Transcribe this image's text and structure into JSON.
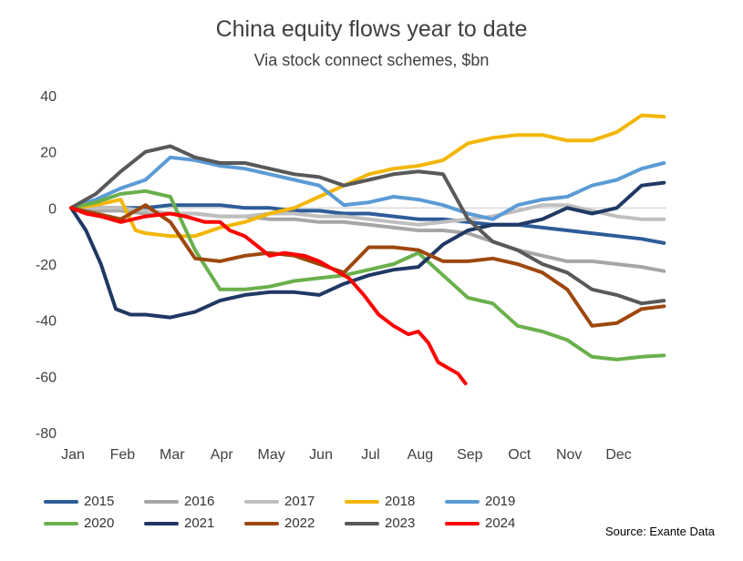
{
  "chart_data": {
    "type": "line",
    "title": "China equity flows year to date",
    "subtitle": "Via stock connect schemes, $bn",
    "source": "Source: Exante Data",
    "ylim": [
      -80,
      40
    ],
    "yticks": [
      40,
      20,
      0,
      -20,
      -40,
      -60,
      -80
    ],
    "xlim": [
      0,
      12
    ],
    "x_tick_labels": [
      "Jan",
      "Feb",
      "Mar",
      "Apr",
      "May",
      "Jun",
      "Jul",
      "Aug",
      "Sep",
      "Oct",
      "Nov",
      "Dec"
    ],
    "grid": false,
    "legend_position": "bottom",
    "series": [
      {
        "name": "2015",
        "color": "#2e5c99",
        "x": [
          0,
          0.5,
          1,
          1.5,
          2,
          2.5,
          3,
          3.5,
          4,
          4.5,
          5,
          5.5,
          6,
          6.5,
          7,
          7.5,
          8,
          8.5,
          9,
          9.5,
          10,
          10.5,
          11,
          11.5,
          11.95
        ],
        "y": [
          0,
          0,
          0,
          0,
          1,
          1,
          1,
          0,
          0,
          -1,
          -1,
          -2,
          -2,
          -3,
          -4,
          -4,
          -5,
          -6,
          -6,
          -7,
          -8,
          -9,
          -10,
          -11,
          -12.5
        ]
      },
      {
        "name": "2016",
        "color": "#a6a6a6",
        "x": [
          0,
          0.5,
          1,
          1.5,
          2,
          2.5,
          3,
          3.5,
          4,
          4.5,
          5,
          5.5,
          6,
          6.5,
          7,
          7.5,
          8,
          8.5,
          9,
          9.5,
          10,
          10.5,
          11,
          11.5,
          11.95
        ],
        "y": [
          0,
          -1,
          -1,
          -2,
          -2,
          -2,
          -3,
          -3,
          -4,
          -4,
          -5,
          -5,
          -6,
          -7,
          -8,
          -8,
          -9,
          -12,
          -15,
          -17,
          -19,
          -19,
          -20,
          -21,
          -22.5
        ]
      },
      {
        "name": "2017",
        "color": "#bfbfbf",
        "x": [
          0,
          0.5,
          1,
          1.5,
          2,
          2.5,
          3,
          3.5,
          4,
          4.5,
          5,
          5.5,
          6,
          6.5,
          7,
          7.5,
          8,
          8.5,
          9,
          9.5,
          10,
          10.5,
          11,
          11.5,
          11.95
        ],
        "y": [
          0,
          0,
          0,
          -1,
          -2,
          -2,
          -3,
          -3,
          -2,
          -2,
          -3,
          -3,
          -4,
          -5,
          -6,
          -5,
          -4,
          -3,
          -1,
          1,
          1,
          -1,
          -3,
          -4,
          -4
        ]
      },
      {
        "name": "2018",
        "color": "#f2b705",
        "x": [
          0,
          0.5,
          1,
          1.3,
          1.5,
          2,
          2.5,
          3,
          3.5,
          4,
          4.5,
          5,
          5.5,
          6,
          6.5,
          7,
          7.5,
          8,
          8.5,
          9,
          9.5,
          10,
          10.5,
          11,
          11.5,
          11.95
        ],
        "y": [
          0,
          1,
          3,
          -8,
          -9,
          -10,
          -10,
          -7,
          -5,
          -2,
          0,
          4,
          8,
          12,
          14,
          15,
          17,
          23,
          25,
          26,
          26,
          24,
          24,
          27,
          33,
          32.5
        ]
      },
      {
        "name": "2019",
        "color": "#5b9bd5",
        "x": [
          0,
          0.5,
          1,
          1.5,
          2,
          2.5,
          3,
          3.5,
          4,
          4.5,
          5,
          5.5,
          6,
          6.5,
          7,
          7.5,
          8,
          8.5,
          9,
          9.5,
          10,
          10.5,
          11,
          11.5,
          11.95
        ],
        "y": [
          0,
          3,
          7,
          10,
          18,
          17,
          15,
          14,
          12,
          10,
          8,
          1,
          2,
          4,
          3,
          1,
          -2,
          -4,
          1,
          3,
          4,
          8,
          10,
          14,
          16
        ]
      },
      {
        "name": "2020",
        "color": "#6ab04c",
        "x": [
          0,
          0.5,
          1,
          1.5,
          2,
          2.5,
          3,
          3.5,
          4,
          4.5,
          5,
          5.5,
          6,
          6.5,
          7,
          7.5,
          8,
          8.5,
          9,
          9.5,
          10,
          10.5,
          11,
          11.5,
          11.95
        ],
        "y": [
          0,
          2,
          5,
          6,
          4,
          -15,
          -29,
          -29,
          -28,
          -26,
          -25,
          -24,
          -22,
          -20,
          -16,
          -24,
          -32,
          -34,
          -42,
          -44,
          -47,
          -53,
          -54,
          -53,
          -52.5
        ]
      },
      {
        "name": "2021",
        "color": "#203864",
        "x": [
          0,
          0.3,
          0.6,
          0.9,
          1.2,
          1.5,
          2,
          2.5,
          3,
          3.5,
          4,
          4.5,
          5,
          5.5,
          6,
          6.5,
          7,
          7.5,
          8,
          8.5,
          9,
          9.5,
          10,
          10.5,
          11,
          11.5,
          11.95
        ],
        "y": [
          0,
          -8,
          -20,
          -36,
          -38,
          -38,
          -39,
          -37,
          -33,
          -31,
          -30,
          -30,
          -31,
          -27,
          -24,
          -22,
          -21,
          -13,
          -8,
          -6,
          -6,
          -4,
          0,
          -2,
          0,
          8,
          9
        ]
      },
      {
        "name": "2022",
        "color": "#9e480e",
        "x": [
          0,
          0.5,
          1,
          1.5,
          2,
          2.5,
          3,
          3.5,
          4,
          4.5,
          5,
          5.5,
          6,
          6.5,
          7,
          7.5,
          8,
          8.5,
          9,
          9.5,
          10,
          10.5,
          11,
          11.5,
          11.95
        ],
        "y": [
          0,
          -2,
          -4,
          1,
          -5,
          -18,
          -19,
          -17,
          -16,
          -17,
          -20,
          -23,
          -14,
          -14,
          -15,
          -19,
          -19,
          -18,
          -20,
          -23,
          -29,
          -42,
          -41,
          -36,
          -35
        ]
      },
      {
        "name": "2023",
        "color": "#595959",
        "x": [
          0,
          0.5,
          1,
          1.5,
          2,
          2.5,
          3,
          3.5,
          4,
          4.5,
          5,
          5.5,
          6,
          6.5,
          7,
          7.5,
          8,
          8.5,
          9,
          9.5,
          10,
          10.5,
          11,
          11.5,
          11.95
        ],
        "y": [
          0,
          5,
          13,
          20,
          22,
          18,
          16,
          16,
          14,
          12,
          11,
          8,
          10,
          12,
          13,
          12,
          -4,
          -12,
          -15,
          -20,
          -23,
          -29,
          -31,
          -34,
          -33
        ]
      },
      {
        "name": "2024",
        "color": "#ff0000",
        "x": [
          0,
          0.3,
          0.6,
          1,
          1.5,
          2,
          2.3,
          2.7,
          3,
          3.2,
          3.5,
          4,
          4.3,
          4.7,
          5,
          5.3,
          5.6,
          5.9,
          6.2,
          6.5,
          6.8,
          7,
          7.2,
          7.4,
          7.6,
          7.8,
          7.95
        ],
        "y": [
          0,
          -2,
          -3,
          -5,
          -3,
          -2,
          -3,
          -5,
          -5,
          -8,
          -10,
          -17,
          -16,
          -17,
          -19,
          -22,
          -25,
          -31,
          -38,
          -42,
          -45,
          -44,
          -48,
          -55,
          -57,
          -59,
          -62.5
        ]
      }
    ]
  }
}
